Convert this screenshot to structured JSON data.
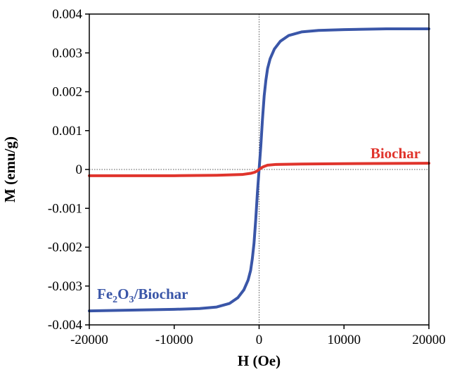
{
  "chart_data": {
    "type": "line",
    "title": "",
    "xlabel": "H (Oe)",
    "ylabel": "M (emu/g)",
    "xlim": [
      -20000,
      20000
    ],
    "ylim": [
      -0.004,
      0.004
    ],
    "x_ticks": [
      -20000,
      -10000,
      0,
      10000,
      20000
    ],
    "x_tick_labels": [
      "-20000",
      "-10000",
      "0",
      "10000",
      "20000"
    ],
    "y_ticks": [
      0.004,
      0.003,
      0.002,
      0.001,
      0,
      -0.001,
      -0.002,
      -0.003,
      -0.004
    ],
    "y_tick_labels": [
      "0.004",
      "0.003",
      "0.002",
      "0.001",
      "0",
      "-0.001",
      "-0.002",
      "-0.003",
      "-0.004"
    ],
    "grid": false,
    "zero_lines": true,
    "legend": "none",
    "series": [
      {
        "label_text": {
          "main": "Fe",
          "sub1": "2",
          "mid": "O",
          "sub2": "3",
          "tail": "/Biochar"
        },
        "color": "#3a56a8",
        "x": [
          -20000,
          -15000,
          -10000,
          -7000,
          -5000,
          -3500,
          -2500,
          -1800,
          -1300,
          -1000,
          -800,
          -600,
          -400,
          -200,
          0,
          200,
          400,
          600,
          800,
          1000,
          1300,
          1800,
          2500,
          3500,
          5000,
          7000,
          10000,
          15000,
          20000
        ],
        "y": [
          -0.00364,
          -0.00362,
          -0.0036,
          -0.00358,
          -0.00354,
          -0.00345,
          -0.0033,
          -0.0031,
          -0.00285,
          -0.0026,
          -0.0023,
          -0.0019,
          -0.0013,
          -0.0006,
          0,
          0.0006,
          0.0013,
          0.0019,
          0.0023,
          0.0026,
          0.00285,
          0.0031,
          0.0033,
          0.00345,
          0.00354,
          0.00358,
          0.0036,
          0.00362,
          0.00362
        ]
      },
      {
        "label_text": "Biochar",
        "color": "#e0342c",
        "x": [
          -20000,
          -10000,
          -5000,
          -2000,
          -1000,
          -500,
          -250,
          0,
          250,
          500,
          1000,
          2000,
          5000,
          10000,
          20000
        ],
        "y": [
          -0.00016,
          -0.00016,
          -0.00015,
          -0.00013,
          -0.0001,
          -7e-05,
          -4e-05,
          0,
          4e-05,
          7e-05,
          0.00011,
          0.00013,
          0.00014,
          0.00015,
          0.00016
        ]
      }
    ]
  }
}
